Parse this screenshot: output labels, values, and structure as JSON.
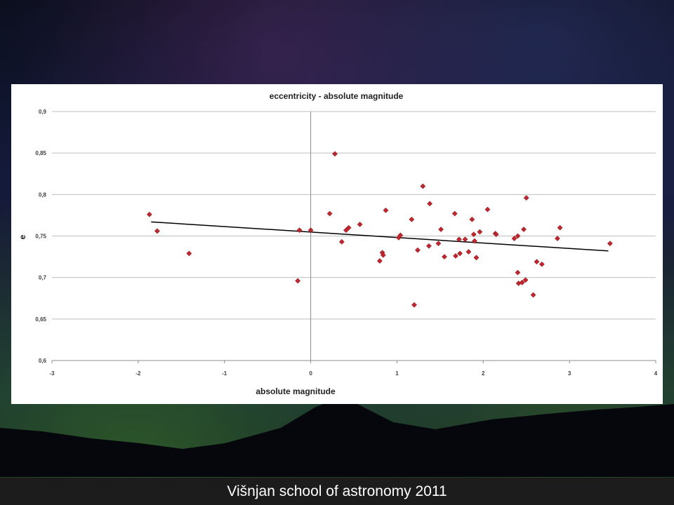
{
  "footer": {
    "text": "Višnjan school of astronomy 2011"
  },
  "chart_data": {
    "type": "scatter",
    "title": "eccentricity - absolute magnitude",
    "xlabel": "absolute magnitude",
    "ylabel": "e",
    "xlim": [
      -3,
      4
    ],
    "ylim": [
      0.6,
      0.9
    ],
    "x_ticks": [
      -3,
      -2,
      -1,
      0,
      1,
      2,
      3,
      4
    ],
    "x_tick_labels": [
      "-3",
      "-2",
      "-1",
      "0",
      "1",
      "2",
      "3",
      "4"
    ],
    "y_ticks": [
      0.6,
      0.65,
      0.7,
      0.75,
      0.8,
      0.85,
      0.9
    ],
    "y_tick_labels": [
      "0,6",
      "0,65",
      "0,7",
      "0,75",
      "0,8",
      "0,85",
      "0,9"
    ],
    "grid": "horizontal",
    "legend": "none",
    "marker_color": "#c0262e",
    "trendline": {
      "x": [
        -1.85,
        3.45
      ],
      "y": [
        0.767,
        0.732
      ],
      "color": "#000000"
    },
    "points": [
      [
        -1.87,
        0.776
      ],
      [
        -1.78,
        0.756
      ],
      [
        -1.41,
        0.729
      ],
      [
        -0.15,
        0.696
      ],
      [
        -0.13,
        0.757
      ],
      [
        0.0,
        0.757
      ],
      [
        0.22,
        0.777
      ],
      [
        0.28,
        0.849
      ],
      [
        0.36,
        0.743
      ],
      [
        0.41,
        0.757
      ],
      [
        0.44,
        0.76
      ],
      [
        0.57,
        0.764
      ],
      [
        0.8,
        0.72
      ],
      [
        0.83,
        0.73
      ],
      [
        0.84,
        0.727
      ],
      [
        0.87,
        0.781
      ],
      [
        1.02,
        0.748
      ],
      [
        1.04,
        0.751
      ],
      [
        1.17,
        0.77
      ],
      [
        1.2,
        0.667
      ],
      [
        1.24,
        0.733
      ],
      [
        1.3,
        0.81
      ],
      [
        1.37,
        0.738
      ],
      [
        1.38,
        0.789
      ],
      [
        1.48,
        0.741
      ],
      [
        1.51,
        0.758
      ],
      [
        1.55,
        0.725
      ],
      [
        1.67,
        0.777
      ],
      [
        1.68,
        0.726
      ],
      [
        1.72,
        0.746
      ],
      [
        1.73,
        0.729
      ],
      [
        1.79,
        0.746
      ],
      [
        1.83,
        0.731
      ],
      [
        1.87,
        0.77
      ],
      [
        1.89,
        0.752
      ],
      [
        1.9,
        0.744
      ],
      [
        1.92,
        0.724
      ],
      [
        1.96,
        0.755
      ],
      [
        2.05,
        0.782
      ],
      [
        2.14,
        0.753
      ],
      [
        2.15,
        0.752
      ],
      [
        2.36,
        0.747
      ],
      [
        2.4,
        0.75
      ],
      [
        2.4,
        0.706
      ],
      [
        2.41,
        0.693
      ],
      [
        2.45,
        0.694
      ],
      [
        2.47,
        0.758
      ],
      [
        2.49,
        0.697
      ],
      [
        2.5,
        0.796
      ],
      [
        2.58,
        0.679
      ],
      [
        2.62,
        0.719
      ],
      [
        2.68,
        0.716
      ],
      [
        2.86,
        0.747
      ],
      [
        2.89,
        0.76
      ],
      [
        3.47,
        0.741
      ]
    ]
  }
}
